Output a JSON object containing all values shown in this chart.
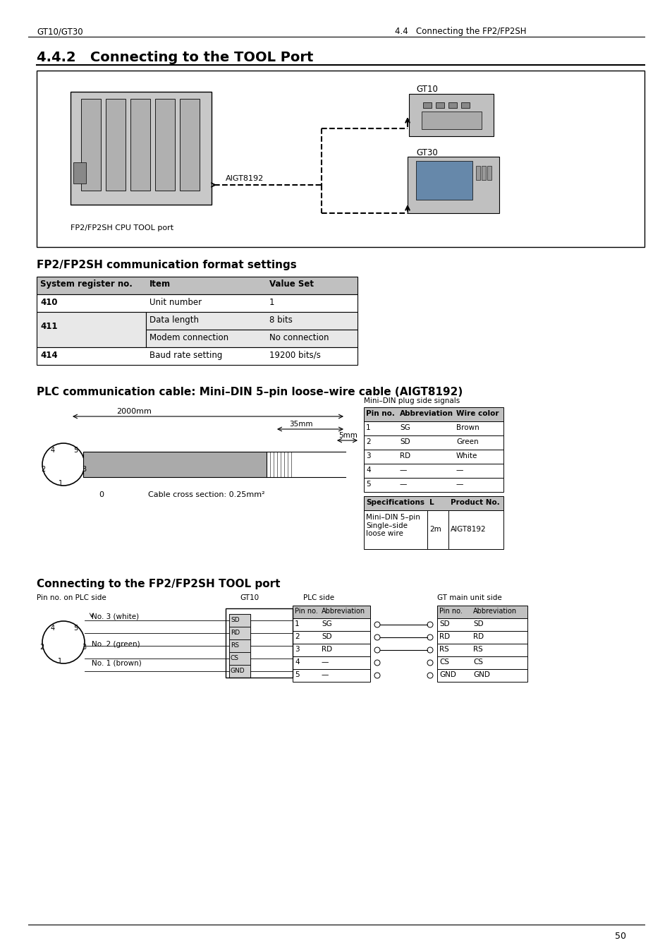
{
  "page_header_left": "GT10/GT30",
  "page_header_right": "4.4   Connecting the FP2/FP2SH",
  "section_title": "4.4.2   Connecting to the TOOL Port",
  "section2_title": "FP2/FP2SH communication format settings",
  "section3_title": "PLC communication cable: Mini–DIN 5–pin loose–wire cable (AIGT8192)",
  "section4_title": "Connecting to the FP2/FP2SH TOOL port",
  "table1_headers": [
    "System register no.",
    "Item",
    "Value Set"
  ],
  "table1_rows": [
    [
      "410",
      "Unit number",
      "1"
    ],
    [
      "411",
      "Data length",
      "8 bits"
    ],
    [
      "411",
      "Modem connection",
      "No connection"
    ],
    [
      "414",
      "Baud rate setting",
      "19200 bits/s"
    ]
  ],
  "table2_headers": [
    "Pin no.",
    "Abbreviation",
    "Wire color"
  ],
  "table2_rows": [
    [
      "1",
      "SG",
      "Brown"
    ],
    [
      "2",
      "SD",
      "Green"
    ],
    [
      "3",
      "RD",
      "White"
    ],
    [
      "4",
      "—",
      "—"
    ],
    [
      "5",
      "—",
      "—"
    ]
  ],
  "table3_headers": [
    "Specifications",
    "L",
    "Product No."
  ],
  "table3_rows": [
    [
      "Mini–DIN 5–pin\nSingle–side\nloose wire",
      "2m",
      "AIGT8192"
    ]
  ],
  "table4_plc_headers": [
    "Pin no.",
    "Abbreviation"
  ],
  "table4_plc_rows": [
    [
      "1",
      "SG"
    ],
    [
      "2",
      "SD"
    ],
    [
      "3",
      "RD"
    ],
    [
      "4",
      "—"
    ],
    [
      "5",
      "—"
    ]
  ],
  "table4_gt_headers": [
    "Pin no.",
    "Abbreviation"
  ],
  "table4_gt_rows": [
    [
      "",
      "SD",
      "SD"
    ],
    [
      "",
      "RD",
      "RD"
    ],
    [
      "",
      "RS",
      "RS"
    ],
    [
      "",
      "CS",
      "CS"
    ],
    [
      "",
      "GND",
      "GND"
    ]
  ],
  "page_number": "50",
  "bg_color": "#ffffff",
  "header_bg": "#d0d0d0",
  "border_color": "#000000",
  "text_color": "#000000"
}
